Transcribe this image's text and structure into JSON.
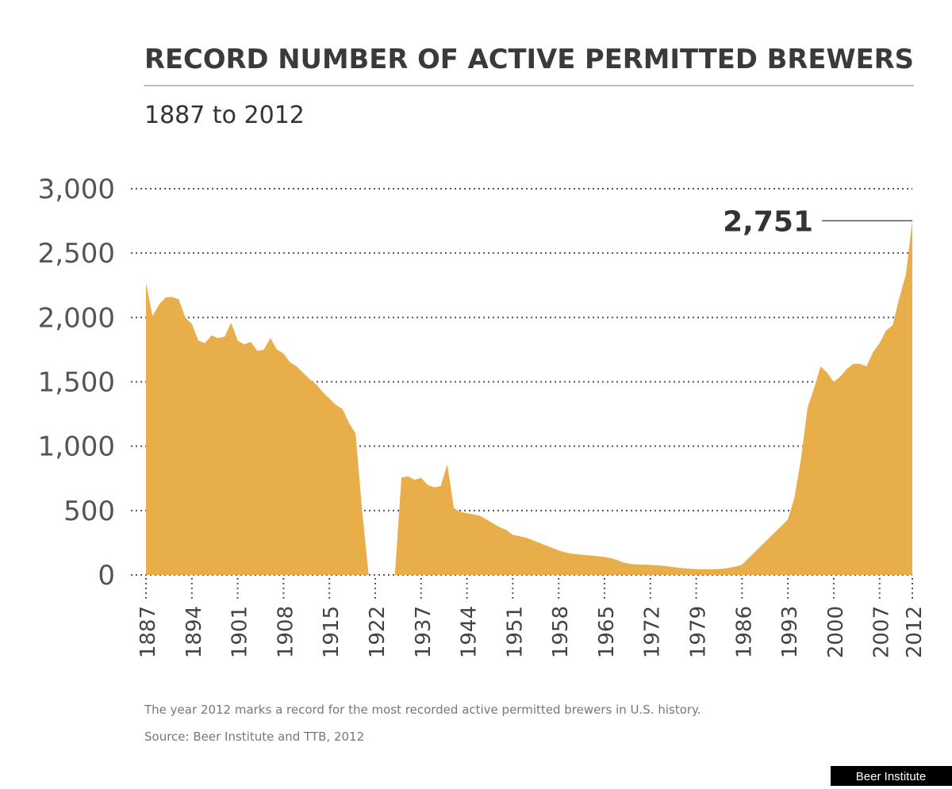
{
  "chart_data": {
    "type": "area",
    "title": "RECORD NUMBER OF ACTIVE PERMITTED BREWERS",
    "subtitle": "1887 to 2012",
    "note": "The year 2012 marks a record for the most recorded active permitted brewers in U.S. history.",
    "source": "Source: Beer Institute and TTB, 2012",
    "credit": "Beer Institute",
    "annotation": "2,751",
    "color": "#e8ae4a",
    "grid": true,
    "ylim": [
      0,
      3000
    ],
    "yticks": [
      0,
      500,
      {
        "value": 1000,
        "label": "1,000"
      },
      {
        "value": 1500,
        "label": "1,500"
      },
      {
        "value": 2000,
        "label": "2,000"
      },
      {
        "value": 2500,
        "label": "2,500"
      },
      {
        "value": 3000,
        "label": "3,000"
      }
    ],
    "categories": [
      "1887",
      null,
      null,
      null,
      null,
      null,
      null,
      "1894",
      null,
      null,
      null,
      null,
      null,
      null,
      "1901",
      null,
      null,
      null,
      null,
      null,
      null,
      "1908",
      null,
      null,
      null,
      null,
      null,
      null,
      "1915",
      null,
      null,
      null,
      null,
      null,
      null,
      "1922",
      null,
      null,
      null,
      null,
      null,
      null,
      "1937",
      null,
      null,
      null,
      null,
      null,
      null,
      "1944",
      null,
      null,
      null,
      null,
      null,
      null,
      "1951",
      null,
      null,
      null,
      null,
      null,
      null,
      "1958",
      null,
      null,
      null,
      null,
      null,
      null,
      "1965",
      null,
      null,
      null,
      null,
      null,
      null,
      "1972",
      null,
      null,
      null,
      null,
      null,
      null,
      "1979",
      null,
      null,
      null,
      null,
      null,
      null,
      "1986",
      null,
      null,
      null,
      null,
      null,
      null,
      "1993",
      null,
      null,
      null,
      null,
      null,
      null,
      "2000",
      null,
      null,
      null,
      null,
      null,
      null,
      "2007",
      null,
      null,
      null,
      null,
      "2012"
    ],
    "values": [
      2269,
      2011,
      2100,
      2156,
      2160,
      2140,
      2000,
      1950,
      1820,
      1800,
      1860,
      1840,
      1850,
      1960,
      1820,
      1790,
      1810,
      1740,
      1750,
      1840,
      1750,
      1720,
      1650,
      1620,
      1570,
      1520,
      1480,
      1420,
      1370,
      1320,
      1290,
      1180,
      1100,
      500,
      0,
      0,
      0,
      0,
      0,
      756,
      766,
      739,
      754,
      700,
      680,
      690,
      860,
      520,
      490,
      480,
      470,
      460,
      430,
      400,
      370,
      350,
      310,
      300,
      290,
      270,
      250,
      230,
      210,
      190,
      175,
      165,
      160,
      155,
      150,
      145,
      140,
      130,
      115,
      95,
      85,
      82,
      80,
      78,
      75,
      70,
      65,
      58,
      52,
      48,
      45,
      44,
      43,
      44,
      48,
      55,
      65,
      80,
      130,
      180,
      230,
      280,
      330,
      380,
      430,
      600,
      900,
      1300,
      1450,
      1620,
      1570,
      1500,
      1540,
      1600,
      1640,
      1640,
      1620,
      1730,
      1800,
      1900,
      1940,
      2150,
      2330,
      2751
    ]
  }
}
